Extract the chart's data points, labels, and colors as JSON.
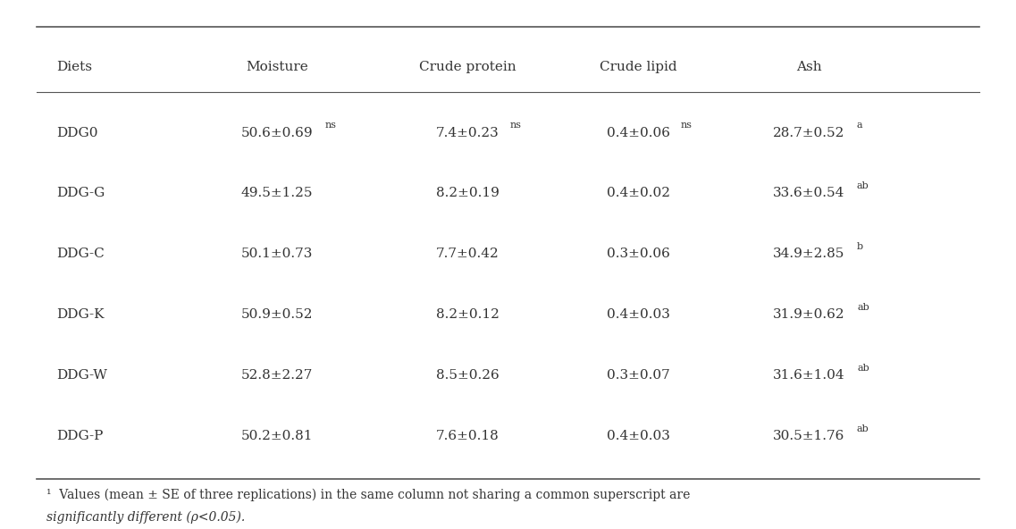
{
  "headers": [
    "Diets",
    "Moisture",
    "Crude protein",
    "Crude lipid",
    "Ash"
  ],
  "rows": [
    {
      "diet": "DDG0",
      "moisture": {
        "text": "50.6±0.69",
        "superscript": "ns"
      },
      "crude_protein": {
        "text": "7.4±0.23",
        "superscript": "ns"
      },
      "crude_lipid": {
        "text": "0.4±0.06",
        "superscript": "ns"
      },
      "ash": {
        "text": "28.7±0.52",
        "superscript": "a"
      }
    },
    {
      "diet": "DDG-G",
      "moisture": {
        "text": "49.5±1.25",
        "superscript": ""
      },
      "crude_protein": {
        "text": "8.2±0.19",
        "superscript": ""
      },
      "crude_lipid": {
        "text": "0.4±0.02",
        "superscript": ""
      },
      "ash": {
        "text": "33.6±0.54",
        "superscript": "ab"
      }
    },
    {
      "diet": "DDG-C",
      "moisture": {
        "text": "50.1±0.73",
        "superscript": ""
      },
      "crude_protein": {
        "text": "7.7±0.42",
        "superscript": ""
      },
      "crude_lipid": {
        "text": "0.3±0.06",
        "superscript": ""
      },
      "ash": {
        "text": "34.9±2.85",
        "superscript": "b"
      }
    },
    {
      "diet": "DDG-K",
      "moisture": {
        "text": "50.9±0.52",
        "superscript": ""
      },
      "crude_protein": {
        "text": "8.2±0.12",
        "superscript": ""
      },
      "crude_lipid": {
        "text": "0.4±0.03",
        "superscript": ""
      },
      "ash": {
        "text": "31.9±0.62",
        "superscript": "ab"
      }
    },
    {
      "diet": "DDG-W",
      "moisture": {
        "text": "52.8±2.27",
        "superscript": ""
      },
      "crude_protein": {
        "text": "8.5±0.26",
        "superscript": ""
      },
      "crude_lipid": {
        "text": "0.3±0.07",
        "superscript": ""
      },
      "ash": {
        "text": "31.6±1.04",
        "superscript": "ab"
      }
    },
    {
      "diet": "DDG-P",
      "moisture": {
        "text": "50.2±0.81",
        "superscript": ""
      },
      "crude_protein": {
        "text": "7.6±0.18",
        "superscript": ""
      },
      "crude_lipid": {
        "text": "0.4±0.03",
        "superscript": ""
      },
      "ash": {
        "text": "30.5±1.76",
        "superscript": "ab"
      }
    }
  ],
  "footnote_line1": "¹  Values (mean ± SE of three replications) in the same column not sharing a common superscript are",
  "footnote_line2": "significantly different (ρ<0.05).",
  "bg_color": "#ffffff",
  "text_color": "#333333",
  "font_size": 11,
  "header_font_size": 11
}
